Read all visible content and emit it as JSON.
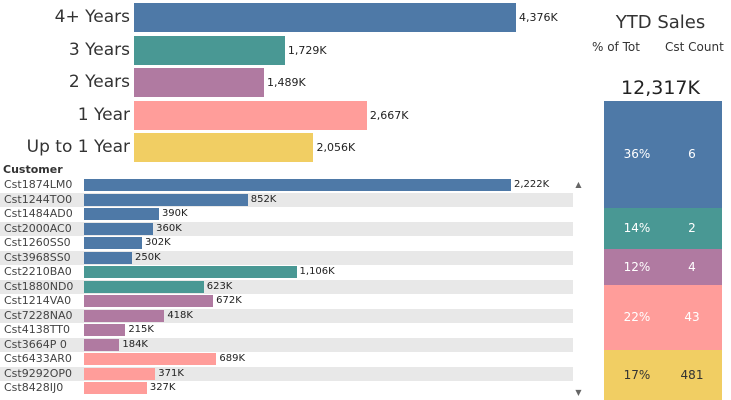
{
  "chart_data": [
    {
      "type": "bar",
      "orientation": "horizontal",
      "categories": [
        "4+ Years",
        "3 Years",
        "2 Years",
        "1 Year",
        "Up to 1 Year"
      ],
      "values": [
        4376,
        1729,
        1489,
        2667,
        2056
      ],
      "value_labels": [
        "4,376K",
        "1,729K",
        "1,489K",
        "2,667K",
        "2,056K"
      ],
      "colors": [
        "#4e79a7",
        "#499894",
        "#b07aa1",
        "#ff9d9a",
        "#f1ce63"
      ],
      "xlim": [
        0,
        4376
      ]
    },
    {
      "type": "bar",
      "orientation": "horizontal",
      "header": "Customer",
      "rows": [
        {
          "name": "Cst1874LM0",
          "value": 2222,
          "label": "2,222K",
          "color": "#4e79a7"
        },
        {
          "name": "Cst1244TO0",
          "value": 852,
          "label": "852K",
          "color": "#4e79a7"
        },
        {
          "name": "Cst1484AD0",
          "value": 390,
          "label": "390K",
          "color": "#4e79a7"
        },
        {
          "name": "Cst2000AC0",
          "value": 360,
          "label": "360K",
          "color": "#4e79a7"
        },
        {
          "name": "Cst1260SS0",
          "value": 302,
          "label": "302K",
          "color": "#4e79a7"
        },
        {
          "name": "Cst3968SS0",
          "value": 250,
          "label": "250K",
          "color": "#4e79a7"
        },
        {
          "name": "Cst2210BA0",
          "value": 1106,
          "label": "1,106K",
          "color": "#499894"
        },
        {
          "name": "Cst1880ND0",
          "value": 623,
          "label": "623K",
          "color": "#499894"
        },
        {
          "name": "Cst1214VA0",
          "value": 672,
          "label": "672K",
          "color": "#b07aa1"
        },
        {
          "name": "Cst7228NA0",
          "value": 418,
          "label": "418K",
          "color": "#b07aa1"
        },
        {
          "name": "Cst4138TT0",
          "value": 215,
          "label": "215K",
          "color": "#b07aa1"
        },
        {
          "name": "Cst3664P 0",
          "value": 184,
          "label": "184K",
          "color": "#b07aa1"
        },
        {
          "name": "Cst6433AR0",
          "value": 689,
          "label": "689K",
          "color": "#ff9d9a"
        },
        {
          "name": "Cst9292OP0",
          "value": 371,
          "label": "371K",
          "color": "#ff9d9a"
        },
        {
          "name": "Cst8428IJ0",
          "value": 327,
          "label": "327K",
          "color": "#ff9d9a"
        }
      ],
      "xlim": [
        0,
        2222
      ]
    },
    {
      "type": "bar",
      "orientation": "stacked-vertical",
      "title": "YTD Sales",
      "column_headers": [
        "% of Tot",
        "Cst Count"
      ],
      "total_label": "12,317K",
      "segments": [
        {
          "pct": 36,
          "pct_label": "36%",
          "count": "6",
          "color": "#4e79a7"
        },
        {
          "pct": 14,
          "pct_label": "14%",
          "count": "2",
          "color": "#499894"
        },
        {
          "pct": 12,
          "pct_label": "12%",
          "count": "4",
          "color": "#b07aa1"
        },
        {
          "pct": 22,
          "pct_label": "22%",
          "count": "43",
          "color": "#ff9d9a"
        },
        {
          "pct": 17,
          "pct_label": "17%",
          "count": "481",
          "color": "#f1ce63"
        }
      ]
    }
  ],
  "scrollbar": {
    "up_icon": "triangle-up-icon",
    "down_icon": "triangle-down-icon"
  }
}
